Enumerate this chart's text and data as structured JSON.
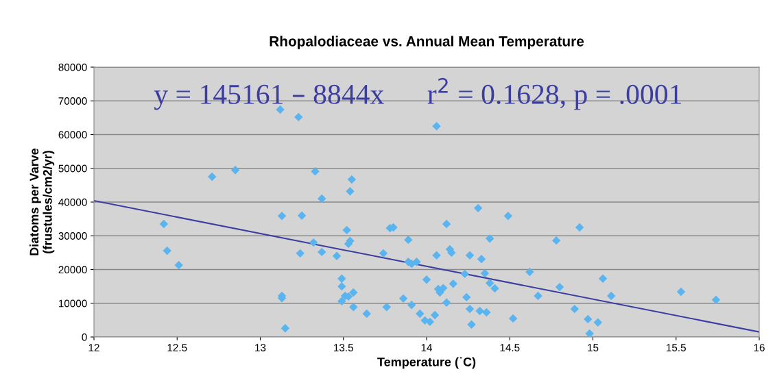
{
  "chart_data": {
    "type": "scatter",
    "title": "Rhopalodiaceae vs. Annual Mean Temperature",
    "xlabel": "Temperature (˙C)",
    "ylabel": "Diatoms per Varve\n(frustules/cm2/yr)",
    "annotations": [
      "y = 145161 – 8844x      r$^{2}$ = 0.1628, p = .0001"
    ],
    "xlim": [
      12,
      16
    ],
    "xticks": [
      12,
      12.5,
      13,
      13.5,
      14,
      14.5,
      15,
      15.5,
      16
    ],
    "ylim": [
      0,
      80000
    ],
    "yticks": [
      0,
      10000,
      20000,
      30000,
      40000,
      50000,
      60000,
      70000,
      80000
    ],
    "grid": "y",
    "legend": false,
    "marker": "diamond",
    "series": [
      {
        "color": "#5ab4f0",
        "x": [
          12.42,
          12.44,
          12.51,
          12.71,
          12.85,
          13.12,
          13.23,
          13.13,
          13.13,
          13.13,
          13.15,
          13.25,
          13.24,
          13.33,
          13.37,
          13.32,
          13.37,
          13.46,
          13.55,
          13.54,
          13.52,
          13.53,
          13.54,
          13.49,
          13.49,
          13.49,
          13.51,
          13.53,
          13.56,
          13.56,
          13.64,
          13.74,
          13.76,
          13.78,
          13.8,
          13.86,
          13.89,
          13.89,
          13.91,
          13.94,
          13.91,
          13.96,
          13.99,
          14.02,
          14.0,
          14.05,
          14.06,
          14.06,
          14.07,
          14.08,
          14.1,
          14.12,
          14.14,
          14.15,
          14.16,
          14.12,
          14.23,
          14.24,
          14.26,
          14.26,
          14.27,
          14.31,
          14.33,
          14.35,
          14.32,
          14.36,
          14.38,
          14.38,
          14.41,
          14.49,
          14.52,
          14.62,
          14.67,
          14.78,
          14.8,
          14.89,
          14.92,
          14.97,
          14.98,
          15.03,
          15.06,
          15.11,
          15.53,
          15.74
        ],
        "values": [
          33500,
          25600,
          21300,
          47500,
          49500,
          67400,
          65200,
          35900,
          12200,
          11500,
          2600,
          36000,
          24800,
          49100,
          41000,
          28000,
          25200,
          24000,
          46700,
          43200,
          31700,
          27600,
          28500,
          17300,
          15000,
          10600,
          12200,
          12000,
          13200,
          8900,
          6900,
          24800,
          8900,
          32300,
          32500,
          11400,
          28800,
          22300,
          21700,
          22300,
          9500,
          6900,
          4900,
          4500,
          17000,
          6500,
          62500,
          24200,
          14200,
          13200,
          14500,
          33500,
          26000,
          25000,
          15800,
          10200,
          18700,
          11800,
          24200,
          8300,
          3700,
          38200,
          23100,
          18900,
          7700,
          7300,
          16000,
          29200,
          14400,
          35900,
          5500,
          19300,
          12200,
          28600,
          14800,
          8300,
          32500,
          5300,
          1000,
          4300,
          17300,
          12200,
          13400,
          11000
        ]
      },
      {
        "type": "line",
        "color": "#3b3ea0",
        "marker": "none",
        "x": [
          12,
          16
        ],
        "values": [
          40400,
          1500
        ]
      }
    ]
  }
}
